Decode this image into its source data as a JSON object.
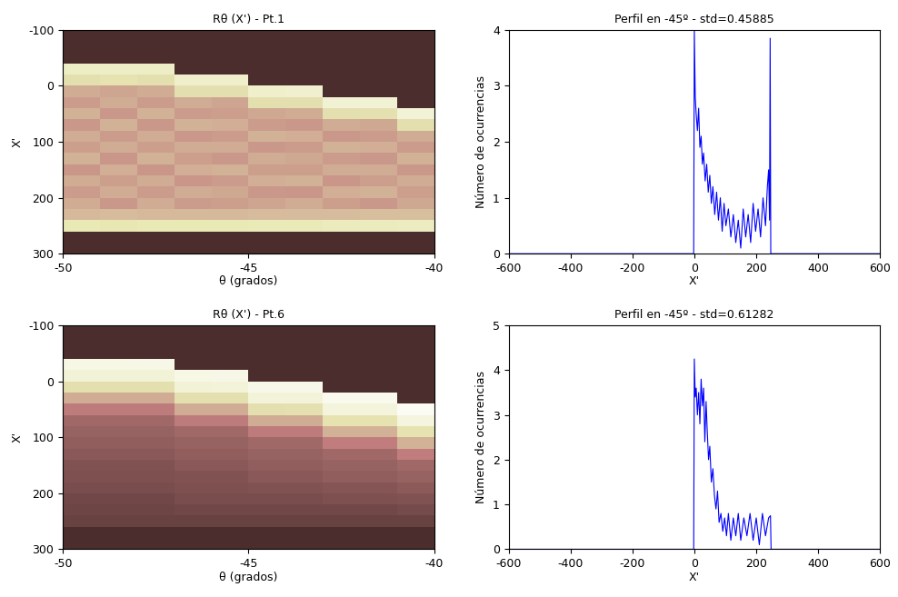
{
  "chart_data": [
    {
      "type": "heatmap",
      "title": "Rθ (X') - Pt.1",
      "x_label": "θ (grados)",
      "y_label": "X'",
      "xlim": [
        -50,
        -40
      ],
      "ylim": [
        300,
        -100
      ],
      "xticks": [
        -50,
        -45,
        -40
      ],
      "yticks": [
        -100,
        0,
        100,
        200,
        300
      ],
      "color": "pink",
      "zlim": [
        0,
        1
      ],
      "x_edges": [
        -50,
        -49,
        -48,
        -47,
        -46,
        -45,
        -44,
        -43,
        -42,
        -41,
        -40
      ],
      "y_edges": [
        -100,
        -80,
        -60,
        -40,
        -20,
        0,
        20,
        40,
        60,
        80,
        100,
        120,
        140,
        160,
        180,
        200,
        220,
        240,
        260,
        280,
        300
      ],
      "columns": [
        [
          0.05,
          0.05,
          0.05,
          0.8,
          0.7,
          0.5,
          0.45,
          0.52,
          0.44,
          0.5,
          0.46,
          0.52,
          0.43,
          0.5,
          0.45,
          0.5,
          0.55,
          0.75,
          0.05,
          0.05
        ],
        [
          0.05,
          0.05,
          0.05,
          0.8,
          0.72,
          0.48,
          0.5,
          0.44,
          0.52,
          0.45,
          0.5,
          0.43,
          0.51,
          0.46,
          0.5,
          0.44,
          0.56,
          0.74,
          0.05,
          0.05
        ],
        [
          0.05,
          0.05,
          0.05,
          0.8,
          0.7,
          0.5,
          0.45,
          0.52,
          0.44,
          0.5,
          0.46,
          0.52,
          0.43,
          0.5,
          0.45,
          0.5,
          0.55,
          0.75,
          0.05,
          0.05
        ],
        [
          0.05,
          0.05,
          0.05,
          0.05,
          0.82,
          0.7,
          0.5,
          0.45,
          0.52,
          0.44,
          0.5,
          0.46,
          0.51,
          0.43,
          0.5,
          0.45,
          0.55,
          0.75,
          0.05,
          0.05
        ],
        [
          0.05,
          0.05,
          0.05,
          0.05,
          0.82,
          0.7,
          0.48,
          0.46,
          0.51,
          0.45,
          0.5,
          0.44,
          0.52,
          0.45,
          0.49,
          0.46,
          0.55,
          0.75,
          0.05,
          0.05
        ],
        [
          0.05,
          0.05,
          0.05,
          0.05,
          0.05,
          0.82,
          0.7,
          0.49,
          0.45,
          0.52,
          0.44,
          0.5,
          0.46,
          0.51,
          0.44,
          0.48,
          0.56,
          0.76,
          0.05,
          0.05
        ],
        [
          0.05,
          0.05,
          0.05,
          0.05,
          0.05,
          0.83,
          0.7,
          0.5,
          0.44,
          0.51,
          0.45,
          0.49,
          0.46,
          0.52,
          0.43,
          0.5,
          0.56,
          0.76,
          0.05,
          0.05
        ],
        [
          0.05,
          0.05,
          0.05,
          0.05,
          0.05,
          0.05,
          0.84,
          0.7,
          0.5,
          0.44,
          0.52,
          0.45,
          0.5,
          0.43,
          0.51,
          0.46,
          0.56,
          0.77,
          0.05,
          0.05
        ],
        [
          0.05,
          0.05,
          0.05,
          0.05,
          0.05,
          0.05,
          0.84,
          0.71,
          0.49,
          0.45,
          0.51,
          0.44,
          0.5,
          0.46,
          0.52,
          0.44,
          0.57,
          0.77,
          0.05,
          0.05
        ],
        [
          0.05,
          0.05,
          0.05,
          0.05,
          0.05,
          0.05,
          0.05,
          0.85,
          0.7,
          0.5,
          0.45,
          0.52,
          0.44,
          0.5,
          0.46,
          0.49,
          0.57,
          0.78,
          0.05,
          0.05
        ]
      ]
    },
    {
      "type": "line",
      "title": "Perfil en -45º - std=0.45885",
      "x_label": "X'",
      "y_label": "Número de ocurrencias",
      "xlim": [
        -600,
        600
      ],
      "ylim": [
        0,
        4
      ],
      "xticks": [
        -600,
        -400,
        -200,
        0,
        200,
        400,
        600
      ],
      "yticks": [
        0,
        1,
        2,
        3,
        4
      ],
      "color": "#0000ff",
      "x": [
        -600,
        -2,
        0,
        3,
        6,
        10,
        14,
        18,
        22,
        26,
        30,
        35,
        40,
        45,
        50,
        55,
        60,
        66,
        72,
        78,
        84,
        90,
        96,
        102,
        110,
        118,
        126,
        134,
        142,
        150,
        158,
        166,
        174,
        182,
        190,
        198,
        206,
        214,
        222,
        230,
        236,
        240,
        243,
        245,
        247,
        600
      ],
      "values": [
        0,
        0,
        4.0,
        2.8,
        2.5,
        2.2,
        2.6,
        1.9,
        2.1,
        1.6,
        1.8,
        1.3,
        1.6,
        1.1,
        1.4,
        0.9,
        1.2,
        0.7,
        1.1,
        0.6,
        1.0,
        0.4,
        0.9,
        0.5,
        0.8,
        0.3,
        0.7,
        0.2,
        0.6,
        0.1,
        0.8,
        0.3,
        0.7,
        0.2,
        0.9,
        0.4,
        0.8,
        0.3,
        1.0,
        0.5,
        1.2,
        1.5,
        0.6,
        3.85,
        0,
        0
      ]
    },
    {
      "type": "heatmap",
      "title": "Rθ (X') - Pt.6",
      "x_label": "θ (grados)",
      "y_label": "X'",
      "xlim": [
        -50,
        -40
      ],
      "ylim": [
        300,
        -100
      ],
      "xticks": [
        -50,
        -45,
        -40
      ],
      "yticks": [
        -100,
        0,
        100,
        200,
        300
      ],
      "color": "pink",
      "zlim": [
        0,
        1
      ],
      "x_edges": [
        -50,
        -49,
        -48,
        -47,
        -46,
        -45,
        -44,
        -43,
        -42,
        -41,
        -40
      ],
      "y_edges": [
        -100,
        -80,
        -60,
        -40,
        -20,
        0,
        20,
        40,
        60,
        80,
        100,
        120,
        140,
        160,
        180,
        200,
        220,
        240,
        260,
        280,
        300
      ],
      "columns": [
        [
          0.05,
          0.05,
          0.05,
          0.9,
          0.85,
          0.7,
          0.5,
          0.35,
          0.25,
          0.22,
          0.2,
          0.18,
          0.16,
          0.15,
          0.14,
          0.12,
          0.11,
          0.1,
          0.05,
          0.05
        ],
        [
          0.05,
          0.05,
          0.05,
          0.9,
          0.85,
          0.7,
          0.5,
          0.35,
          0.25,
          0.22,
          0.2,
          0.18,
          0.16,
          0.15,
          0.14,
          0.12,
          0.11,
          0.1,
          0.05,
          0.05
        ],
        [
          0.05,
          0.05,
          0.05,
          0.91,
          0.85,
          0.7,
          0.5,
          0.35,
          0.25,
          0.22,
          0.2,
          0.18,
          0.16,
          0.15,
          0.14,
          0.12,
          0.11,
          0.1,
          0.05,
          0.05
        ],
        [
          0.05,
          0.05,
          0.05,
          0.05,
          0.9,
          0.85,
          0.7,
          0.5,
          0.35,
          0.25,
          0.22,
          0.2,
          0.18,
          0.16,
          0.15,
          0.14,
          0.12,
          0.1,
          0.05,
          0.05
        ],
        [
          0.05,
          0.05,
          0.05,
          0.05,
          0.91,
          0.86,
          0.7,
          0.5,
          0.35,
          0.25,
          0.22,
          0.2,
          0.18,
          0.16,
          0.15,
          0.14,
          0.12,
          0.1,
          0.05,
          0.05
        ],
        [
          0.05,
          0.05,
          0.05,
          0.05,
          0.05,
          0.92,
          0.86,
          0.7,
          0.5,
          0.35,
          0.25,
          0.22,
          0.2,
          0.18,
          0.16,
          0.14,
          0.12,
          0.1,
          0.05,
          0.05
        ],
        [
          0.05,
          0.05,
          0.05,
          0.05,
          0.05,
          0.92,
          0.86,
          0.71,
          0.5,
          0.35,
          0.25,
          0.22,
          0.2,
          0.18,
          0.16,
          0.14,
          0.12,
          0.1,
          0.05,
          0.05
        ],
        [
          0.05,
          0.05,
          0.05,
          0.05,
          0.05,
          0.05,
          0.93,
          0.87,
          0.72,
          0.52,
          0.36,
          0.25,
          0.22,
          0.2,
          0.17,
          0.15,
          0.12,
          0.1,
          0.05,
          0.05
        ],
        [
          0.05,
          0.05,
          0.05,
          0.05,
          0.05,
          0.05,
          0.93,
          0.87,
          0.72,
          0.52,
          0.36,
          0.25,
          0.22,
          0.2,
          0.17,
          0.15,
          0.12,
          0.1,
          0.05,
          0.05
        ],
        [
          0.05,
          0.05,
          0.05,
          0.05,
          0.05,
          0.05,
          0.05,
          0.95,
          0.88,
          0.72,
          0.52,
          0.36,
          0.25,
          0.22,
          0.19,
          0.16,
          0.13,
          0.1,
          0.05,
          0.05
        ]
      ]
    },
    {
      "type": "line",
      "title": "Perfil en -45º - std=0.61282",
      "x_label": "X'",
      "y_label": "Número de ocurrencias",
      "xlim": [
        -600,
        600
      ],
      "ylim": [
        0,
        5
      ],
      "xticks": [
        -600,
        -400,
        -200,
        0,
        200,
        400,
        600
      ],
      "yticks": [
        0,
        1,
        2,
        3,
        4,
        5
      ],
      "color": "#0000ff",
      "x": [
        -600,
        -2,
        0,
        3,
        6,
        10,
        14,
        18,
        22,
        26,
        30,
        34,
        38,
        42,
        46,
        50,
        55,
        60,
        65,
        70,
        75,
        80,
        86,
        92,
        98,
        104,
        110,
        118,
        126,
        134,
        142,
        150,
        160,
        170,
        180,
        190,
        200,
        210,
        220,
        230,
        240,
        246,
        248,
        600
      ],
      "values": [
        0,
        0,
        4.25,
        3.4,
        3.6,
        3.0,
        3.5,
        2.8,
        3.8,
        3.2,
        3.6,
        2.4,
        3.3,
        2.6,
        2.0,
        2.3,
        1.5,
        1.8,
        1.2,
        0.9,
        1.3,
        0.6,
        0.8,
        0.4,
        0.7,
        0.3,
        0.8,
        0.2,
        0.7,
        0.3,
        0.8,
        0.2,
        0.7,
        0.3,
        0.8,
        0.2,
        0.7,
        0.1,
        0.8,
        0.3,
        0.7,
        0.75,
        0,
        0
      ]
    }
  ]
}
